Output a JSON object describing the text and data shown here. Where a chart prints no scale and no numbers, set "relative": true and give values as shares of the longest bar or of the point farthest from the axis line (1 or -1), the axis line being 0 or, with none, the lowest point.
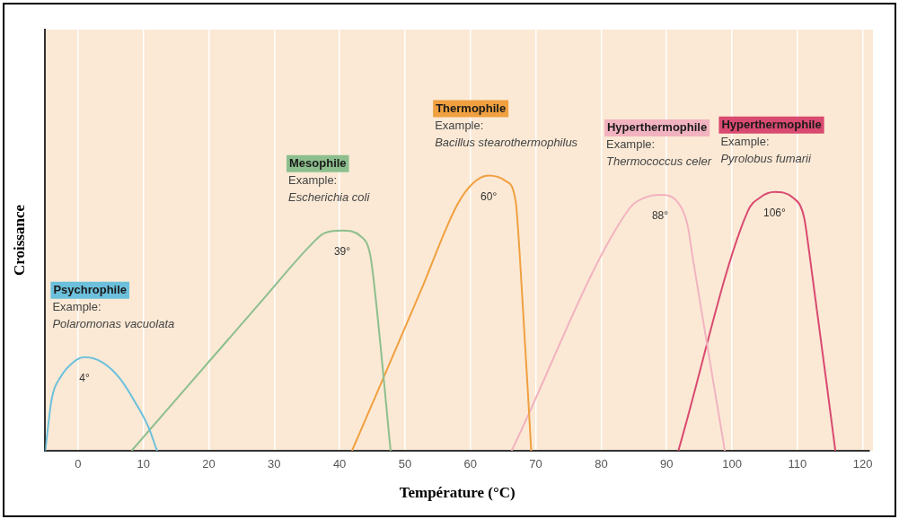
{
  "chart_data": {
    "type": "line",
    "xlabel": "Température (°C)",
    "ylabel": "Croissance",
    "relative": true,
    "xlim": [
      -5,
      121
    ],
    "xticks": [
      0,
      10,
      20,
      30,
      40,
      50,
      60,
      70,
      80,
      90,
      100,
      110,
      120
    ],
    "grid": "x",
    "legend": false,
    "marker": "none",
    "series": [
      {
        "name": "Psychrophile",
        "color": "#6cc0dc",
        "x": [
          -5,
          -4,
          -2.6,
          -0.8,
          1,
          3.8,
          6.5,
          8.9,
          10.7,
          12.1
        ],
        "values": [
          0,
          0.19,
          0.27,
          0.32,
          0.34,
          0.32,
          0.26,
          0.17,
          0.09,
          0
        ]
      },
      {
        "name": "Mesophile",
        "color": "#8dbf8e",
        "x": [
          8.2,
          28.3,
          35.3,
          37.6,
          40.4,
          43.2,
          44.7,
          45.4,
          47.8
        ],
        "values": [
          0,
          0.55,
          0.74,
          0.79,
          0.8,
          0.78,
          0.71,
          0.58,
          0
        ]
      },
      {
        "name": "Thermophile",
        "color": "#f0a040",
        "x": [
          41.9,
          52.4,
          57.9,
          60.3,
          62.8,
          65.4,
          66.9,
          67.6,
          69.3
        ],
        "values": [
          0,
          0.58,
          0.89,
          0.97,
          1,
          0.98,
          0.91,
          0.69,
          0
        ]
      },
      {
        "name": "Hyperthermophile",
        "color": "#f2b3c0",
        "x": [
          66.3,
          84.3,
          86.7,
          89,
          91.8,
          93.2,
          94,
          98.9
        ],
        "values": [
          0,
          0.88,
          0.92,
          0.93,
          0.9,
          0.82,
          0.7,
          0
        ]
      },
      {
        "name": "Hyperthermophile",
        "color": "#d94a70",
        "x": [
          91.8,
          102.4,
          104.3,
          106.5,
          109.3,
          111,
          111.7,
          115.8
        ],
        "values": [
          0,
          0.87,
          0.92,
          0.94,
          0.92,
          0.85,
          0.74,
          0
        ]
      }
    ],
    "annotations": [
      "Example:\nPolaromonas vacuolata",
      "Example:\nEscherichia coli",
      "Example:\nBacillus stearothermophilus",
      "Example:\nThermococcus celer",
      "Example:\nPyrolobus fumarii",
      "4°",
      "39°",
      "60°",
      "88°",
      "106°"
    ]
  }
}
